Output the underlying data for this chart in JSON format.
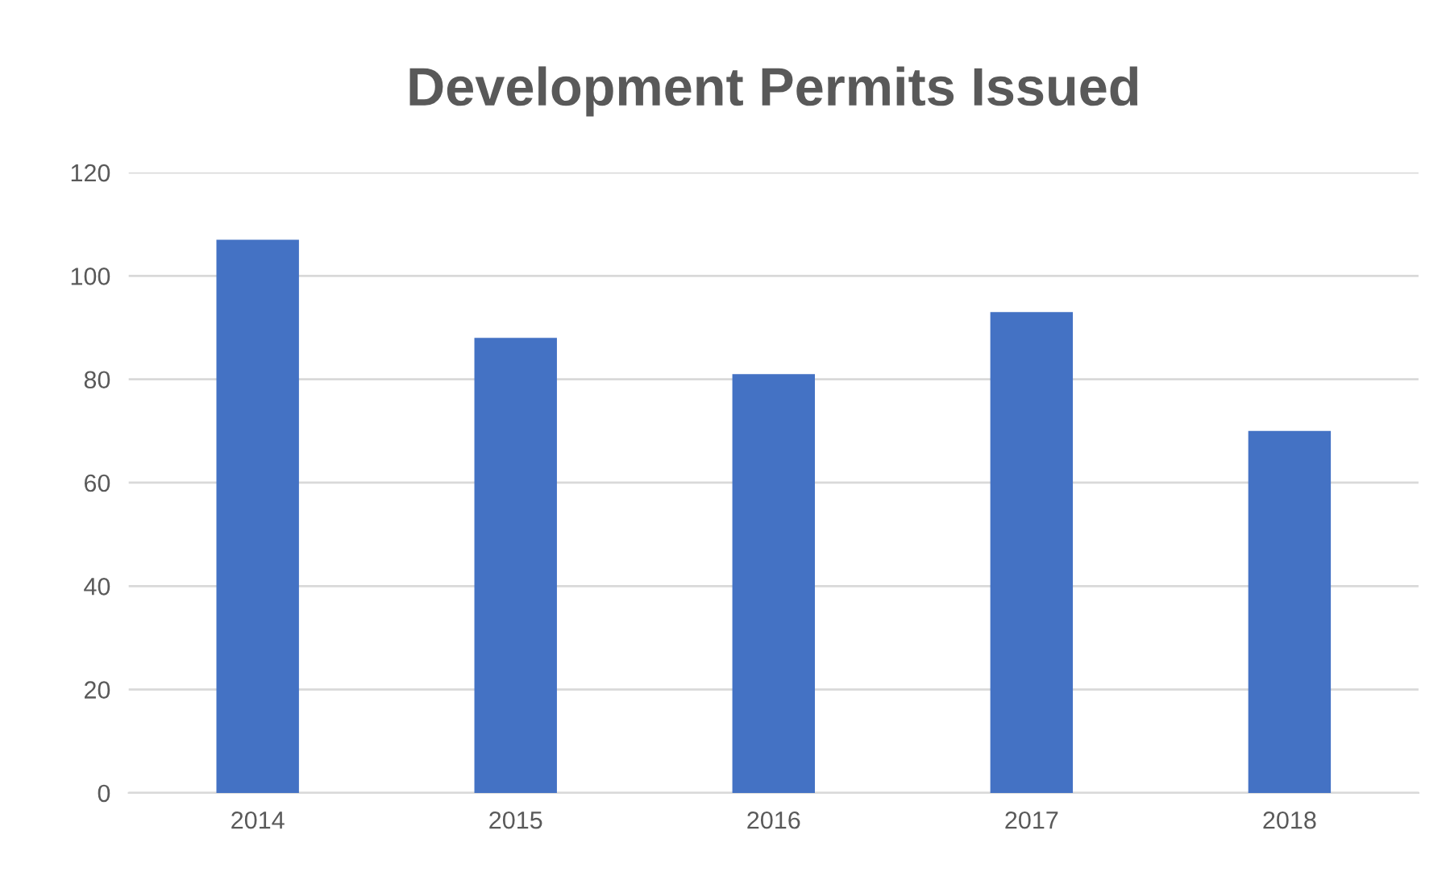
{
  "chart_data": {
    "type": "bar",
    "title": "Development Permits Issued",
    "categories": [
      "2014",
      "2015",
      "2016",
      "2017",
      "2018"
    ],
    "values": [
      107,
      88,
      81,
      93,
      70
    ],
    "color": "#4472c4",
    "ylim": [
      0,
      120
    ],
    "yticks": [
      0,
      20,
      40,
      60,
      80,
      100,
      120
    ],
    "grid": "y"
  }
}
